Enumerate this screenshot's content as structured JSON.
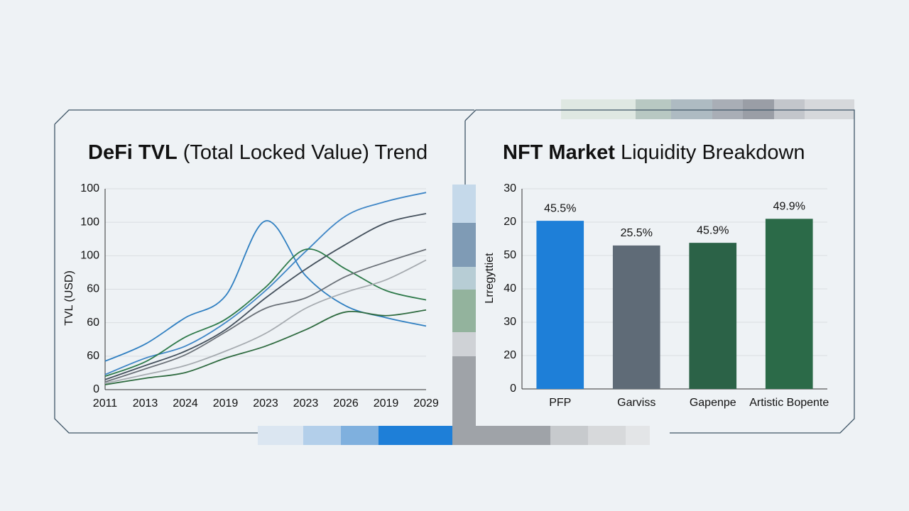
{
  "chart_data": [
    {
      "type": "line",
      "title_emphasis": "DeFi TVL",
      "title": "(Total Locked Value) Trend",
      "y_label": "TVL (USD)",
      "categories": [
        "2011",
        "2013",
        "2024",
        "2019",
        "2023",
        "2023",
        "2026",
        "2019",
        "2029"
      ],
      "ylim": [
        0,
        6
      ],
      "yticks": [
        0,
        {
          "value": 1,
          "label": "60"
        },
        {
          "value": 2,
          "label": "60"
        },
        {
          "value": 3,
          "label": "60"
        },
        {
          "value": 4,
          "label": "100"
        },
        {
          "value": 5,
          "label": "100"
        },
        {
          "value": 6,
          "label": "100"
        }
      ],
      "grid": true,
      "series": [
        {
          "color": "#2f7fc1",
          "values": [
            0.85,
            1.36,
            2.15,
            2.8,
            5.04,
            3.4,
            2.5,
            2.15,
            1.9
          ]
        },
        {
          "color": "#3f86c6",
          "values": [
            0.45,
            0.94,
            1.3,
            2.0,
            2.96,
            4.13,
            5.19,
            5.62,
            5.89
          ]
        },
        {
          "color": "#44505c",
          "values": [
            0.3,
            0.72,
            1.15,
            1.79,
            2.74,
            3.6,
            4.34,
            4.98,
            5.26
          ]
        },
        {
          "color": "#2e7a4a",
          "values": [
            0.4,
            0.83,
            1.57,
            2.1,
            3.06,
            4.19,
            3.6,
            2.96,
            2.68
          ]
        },
        {
          "color": "#6b7178",
          "values": [
            0.23,
            0.62,
            1.04,
            1.72,
            2.43,
            2.74,
            3.38,
            3.81,
            4.19
          ]
        },
        {
          "color": "#a6abb0",
          "values": [
            0.19,
            0.45,
            0.72,
            1.15,
            1.68,
            2.43,
            2.91,
            3.28,
            3.87
          ]
        },
        {
          "color": "#2f6b40",
          "values": [
            0.15,
            0.34,
            0.51,
            0.94,
            1.3,
            1.79,
            2.32,
            2.21,
            2.38
          ]
        }
      ]
    },
    {
      "type": "bar",
      "title_emphasis": "NFT Market",
      "title": "Liquidity Breakdown",
      "y_label": "Lrregyttiet",
      "categories": [
        "PFP",
        "Garviss",
        "Gapenpe",
        "Artistic Bopente"
      ],
      "values": [
        5.04,
        4.3,
        4.38,
        5.1
      ],
      "annotations": [
        "45.5%",
        "25.5%",
        "45.9%",
        "49.9%"
      ],
      "colors": [
        "#1e7fd8",
        "#5f6b77",
        "#2b6247",
        "#2b6a48"
      ],
      "ylim": [
        0,
        6
      ],
      "yticks": [
        0,
        {
          "value": 1,
          "label": "20"
        },
        {
          "value": 2,
          "label": "30"
        },
        {
          "value": 3,
          "label": "40"
        },
        {
          "value": 4,
          "label": "50"
        },
        {
          "value": 5,
          "label": "20"
        },
        {
          "value": 6,
          "label": "30"
        }
      ],
      "grid": true
    }
  ]
}
